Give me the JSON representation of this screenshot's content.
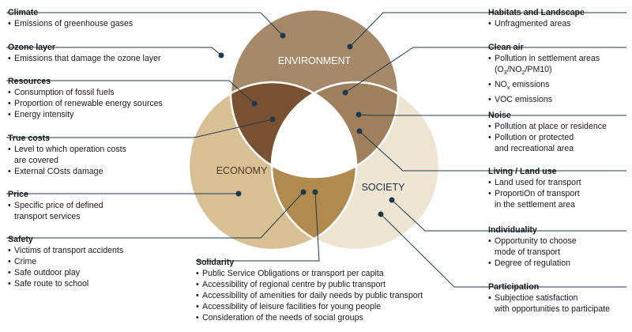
{
  "circles": {
    "environment": {
      "label": "ENVIRONMENT",
      "fill": "#a6896a",
      "label_color": "#ffffff"
    },
    "economy": {
      "label": "ECONOMY",
      "fill": "#d8bf94",
      "label_color": "#4a3a26"
    },
    "society": {
      "label": "SOCIETY",
      "fill": "#ede4d2",
      "label_color": "#1e2f45"
    }
  },
  "overlap_colors": {
    "env_econ": "#7a5232",
    "env_soc": "#a07f5c",
    "econ_soc": "#b08a4e",
    "center": "#ffffff",
    "outline": "#ffffff",
    "line": "#1e3a4c",
    "dot": "#1e3a4c"
  },
  "blocks": {
    "climate": {
      "title": "Climate",
      "items": [
        [
          "Emissions of greenhouse gases"
        ]
      ]
    },
    "ozone": {
      "title": "Ozone layer",
      "items": [
        [
          "Emissions that damage the ozone layer"
        ]
      ]
    },
    "resources": {
      "title": "Resources",
      "items": [
        [
          "Consumption of fossil fuels"
        ],
        [
          "Proportion of renewable energy sources"
        ],
        [
          "Energy intensity"
        ]
      ]
    },
    "true_costs": {
      "title": "True costs",
      "items": [
        [
          "Level to which operation costs",
          "are covered"
        ],
        [
          "External COsts damage"
        ]
      ]
    },
    "price": {
      "title": "Price",
      "items": [
        [
          "Specific price of defined",
          "transport services"
        ]
      ]
    },
    "safety": {
      "title": "Safety",
      "items": [
        [
          "Victims of transport accidents"
        ],
        [
          "Crime"
        ],
        [
          "Safe outdoor play"
        ],
        [
          "Safe route to school"
        ]
      ]
    },
    "solidarity": {
      "title": "Solidarity",
      "items": [
        [
          "Public Service Obligations or transport per capita"
        ],
        [
          "Accessibility of regional centre by public transport"
        ],
        [
          "Accessibility of amenities for daily needs by public transport"
        ],
        [
          "Accessibility of leisure facilities for young people"
        ],
        [
          "Consideration of the needs of social groups"
        ]
      ]
    },
    "habitats": {
      "title": "Habitats and Landscape",
      "items": [
        [
          "Unfragmented areas"
        ]
      ]
    },
    "clean_air": {
      "title": "Clean air",
      "items": [
        [
          "Pollution in settlement areas"
        ],
        [
          "NOx emissions"
        ],
        [
          "VOC emissions"
        ]
      ],
      "sub_line": {
        "pre": "(O",
        "s1": "3",
        "mid": "/NO",
        "s2": "2",
        "post": "/PM10)"
      },
      "nox": {
        "pre": "NO",
        "s": "x",
        "post": " emissions"
      }
    },
    "noise": {
      "title": "Noise",
      "items": [
        [
          "Pollution at place or residence"
        ],
        [
          "Pollution or protected",
          "and recreational area"
        ]
      ]
    },
    "living": {
      "title": "Living / Land use",
      "items": [
        [
          "Land used for transport"
        ],
        [
          "ProportiOn of transport",
          "in the settlement area"
        ]
      ]
    },
    "individuality": {
      "title": "Individuality",
      "items": [
        [
          "Opportunity to choose",
          "mode of transport"
        ],
        [
          "Degree of regulation"
        ]
      ]
    },
    "participation": {
      "title": "Participation",
      "items": [
        [
          "Subjectioe satisfaction",
          "with opportunities to participate"
        ]
      ]
    }
  }
}
